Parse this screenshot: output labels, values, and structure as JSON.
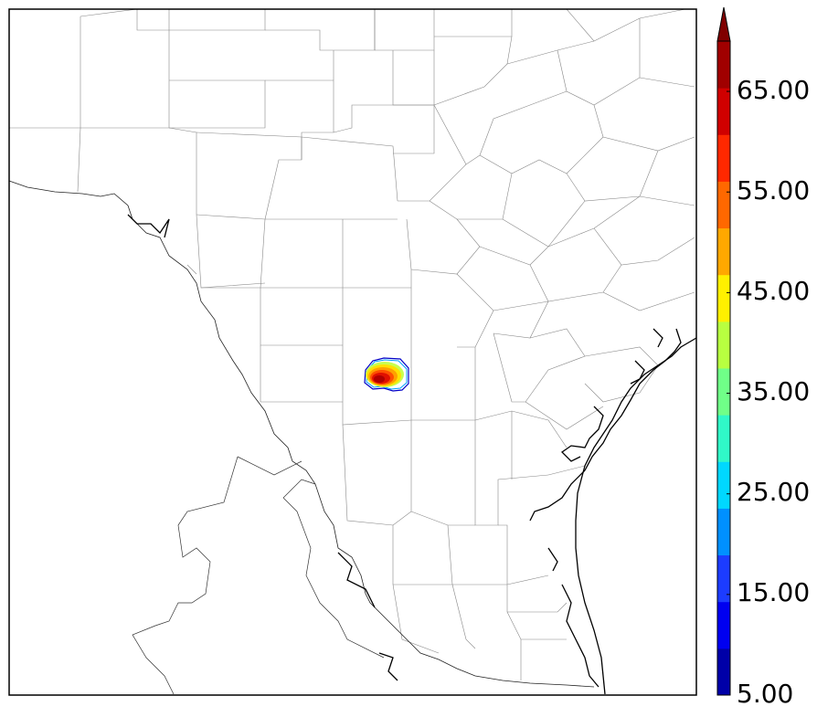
{
  "colorbar": {
    "min": 5,
    "max": 70,
    "step": 5,
    "extend": "max",
    "labels": [
      "5.00",
      "15.00",
      "25.00",
      "35.00",
      "45.00",
      "55.00",
      "65.00"
    ],
    "colors": [
      "#0000a8",
      "#0000f0",
      "#1c3cff",
      "#0090ff",
      "#00d8ff",
      "#30f8c8",
      "#70ff88",
      "#b8ff40",
      "#fff000",
      "#ffa800",
      "#ff6800",
      "#ff2800",
      "#d00000",
      "#a00000"
    ],
    "extend_color": "#800000"
  },
  "map": {
    "region": "South Texas",
    "reflectivity_cell": {
      "peak_value": 65,
      "edge_value": 5
    }
  }
}
